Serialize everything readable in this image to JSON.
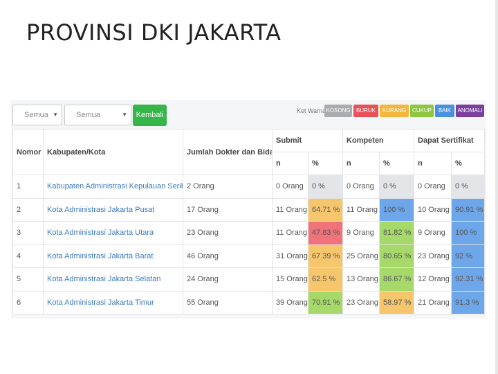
{
  "page": {
    "title": "PROVINSI DKI JAKARTA"
  },
  "filters": {
    "select1": "Semua",
    "select2": "Semua",
    "back_button": "Kembali"
  },
  "legend": {
    "label": "Ket Warna:",
    "items": [
      {
        "label": "KOSONG",
        "color": "#a9abae"
      },
      {
        "label": "BURUK",
        "color": "#e9515a"
      },
      {
        "label": "KURANG",
        "color": "#f4b63b"
      },
      {
        "label": "CUKUP",
        "color": "#8dc63f"
      },
      {
        "label": "BAIK",
        "color": "#4a90e2"
      },
      {
        "label": "ANOMALI",
        "color": "#7b3fa0"
      }
    ]
  },
  "table": {
    "headers": {
      "nomor": "Nomor",
      "kabupaten": "Kabupaten/Kota",
      "jumlah": "Jumlah Dokter dan Bidan",
      "submit": "Submit",
      "kompeten": "Kompeten",
      "sertifikat": "Dapat Sertifikat",
      "n": "n",
      "pct": "%"
    },
    "rows": [
      {
        "no": "1",
        "name": "Kabupaten Administrasi Kepulauan Seribu",
        "jumlah": "2 Orang",
        "sub_n": "0 Orang",
        "sub_p": "0 %",
        "kom_n": "0 Orang",
        "kom_p": "0 %",
        "ser_n": "0 Orang",
        "ser_p": "0 %",
        "sub_c": "grey",
        "kom_c": "grey",
        "ser_c": "grey"
      },
      {
        "no": "2",
        "name": "Kota Administrasi Jakarta Pusat",
        "jumlah": "17 Orang",
        "sub_n": "11 Orang",
        "sub_p": "64.71 %",
        "kom_n": "11 Orang",
        "kom_p": "100 %",
        "ser_n": "10 Orang",
        "ser_p": "90.91 %",
        "sub_c": "orange",
        "kom_c": "blue",
        "ser_c": "blue"
      },
      {
        "no": "3",
        "name": "Kota Administrasi Jakarta Utara",
        "jumlah": "23 Orang",
        "sub_n": "11 Orang",
        "sub_p": "47.83 %",
        "kom_n": "9 Orang",
        "kom_p": "81.82 %",
        "ser_n": "9 Orang",
        "ser_p": "100 %",
        "sub_c": "red",
        "kom_c": "green",
        "ser_c": "blue"
      },
      {
        "no": "4",
        "name": "Kota Administrasi Jakarta Barat",
        "jumlah": "46 Orang",
        "sub_n": "31 Orang",
        "sub_p": "67.39 %",
        "kom_n": "25 Orang",
        "kom_p": "80.65 %",
        "ser_n": "23 Orang",
        "ser_p": "92 %",
        "sub_c": "orange",
        "kom_c": "green",
        "ser_c": "blue"
      },
      {
        "no": "5",
        "name": "Kota Administrasi Jakarta Selatan",
        "jumlah": "24 Orang",
        "sub_n": "15 Orang",
        "sub_p": "62.5 %",
        "kom_n": "13 Orang",
        "kom_p": "86.67 %",
        "ser_n": "12 Orang",
        "ser_p": "92.31 %",
        "sub_c": "orange",
        "kom_c": "green",
        "ser_c": "blue"
      },
      {
        "no": "6",
        "name": "Kota Administrasi Jakarta Timur",
        "jumlah": "55 Orang",
        "sub_n": "39 Orang",
        "sub_p": "70.91 %",
        "kom_n": "23 Orang",
        "kom_p": "58.97 %",
        "ser_n": "21 Orang",
        "ser_p": "91.3 %",
        "sub_c": "green",
        "kom_c": "orange",
        "ser_c": "blue"
      }
    ]
  }
}
